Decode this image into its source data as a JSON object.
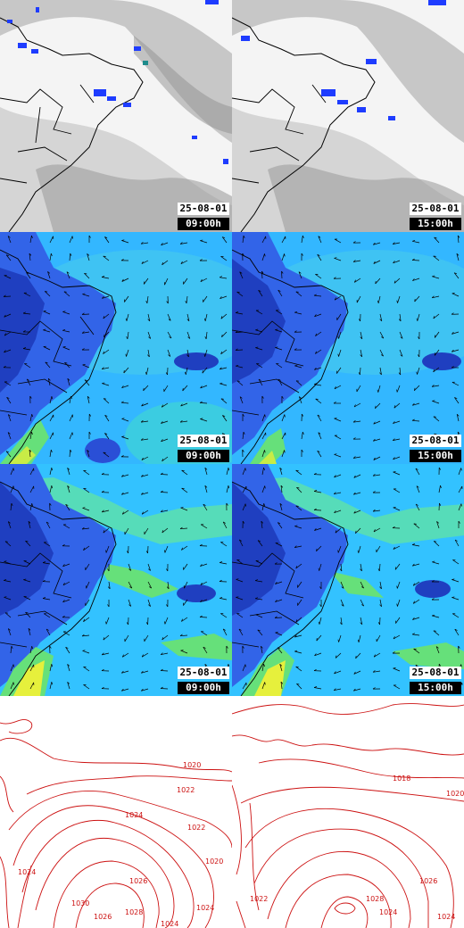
{
  "rows": [
    {
      "kind": "satellite",
      "panels": [
        {
          "date": "25-08-01",
          "time": "09:00h"
        },
        {
          "date": "25-08-01",
          "time": "15:00h"
        }
      ]
    },
    {
      "kind": "wind",
      "panels": [
        {
          "date": "25-08-01",
          "time": "09:00h"
        },
        {
          "date": "25-08-01",
          "time": "15:00h"
        }
      ]
    },
    {
      "kind": "wind",
      "panels": [
        {
          "date": "25-08-01",
          "time": "09:00h"
        },
        {
          "date": "25-08-01",
          "time": "15:00h"
        }
      ]
    },
    {
      "kind": "pressure",
      "panels": [
        {
          "labels": [
            "1020",
            "1022",
            "1024",
            "1022",
            "1020",
            "1026",
            "1024",
            "1024",
            "1030",
            "1028",
            "1026",
            "1024"
          ]
        },
        {
          "labels": [
            "1018",
            "1020",
            "1028",
            "1024",
            "1026",
            "1024",
            "1022"
          ]
        }
      ]
    }
  ],
  "colors": {
    "contour": "#cc1111",
    "border": "#000000",
    "cloud": "#a9a9a9",
    "rain": "#1e3cff"
  }
}
